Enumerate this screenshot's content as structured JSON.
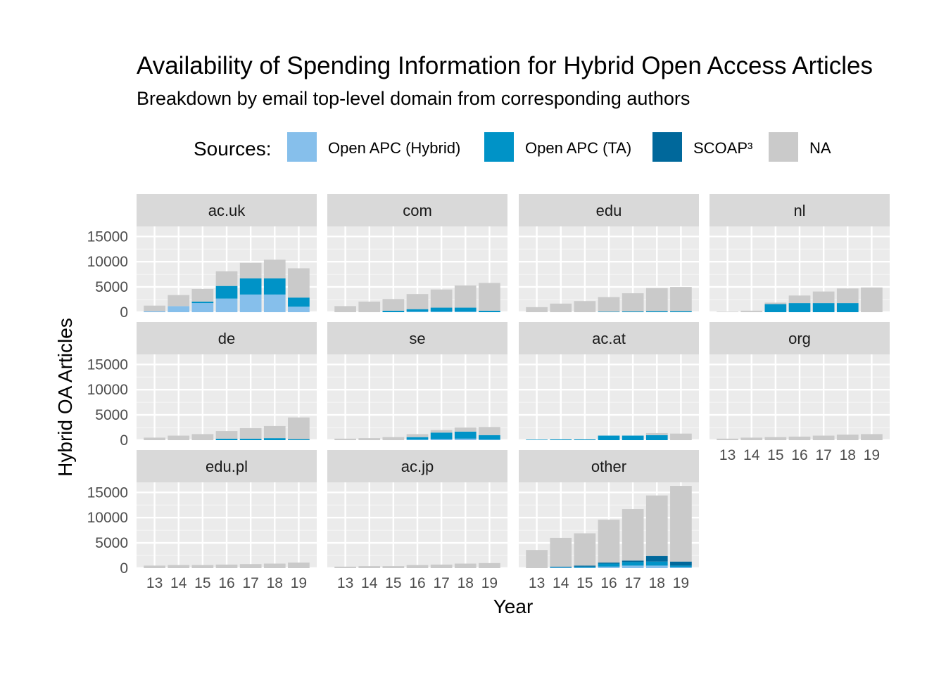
{
  "chart_data": {
    "type": "bar",
    "stacked": true,
    "title": "Availability of Spending Information for Hybrid Open Access Articles",
    "subtitle": "Breakdown by email top-level domain from corresponding authors",
    "xlabel": "Year",
    "ylabel": "Hybrid OA Articles",
    "ylim": [
      0,
      17000
    ],
    "yticks": [
      0,
      5000,
      10000,
      15000
    ],
    "x": [
      "13",
      "14",
      "15",
      "16",
      "17",
      "18",
      "19"
    ],
    "legend": {
      "title": "Sources:",
      "position": "top",
      "entries": [
        {
          "key": "hybrid",
          "label": "Open APC (Hybrid)",
          "color": "#86bfeb"
        },
        {
          "key": "ta",
          "label": "Open APC (TA)",
          "color": "#0093c7"
        },
        {
          "key": "scoap",
          "label": "SCOAP³",
          "color": "#00689b"
        },
        {
          "key": "na",
          "label": "NA",
          "color": "#cacaca"
        }
      ]
    },
    "panel_background": "#ebebeb",
    "strip_background": "#d9d9d9",
    "grid": true,
    "facets": [
      {
        "name": "ac.uk",
        "hybrid": [
          200,
          1200,
          1800,
          2700,
          3500,
          3500,
          1100
        ],
        "ta": [
          0,
          0,
          300,
          2500,
          3200,
          3200,
          1800
        ],
        "scoap": [
          0,
          0,
          0,
          0,
          0,
          0,
          0
        ],
        "na": [
          1100,
          2200,
          2500,
          2900,
          3100,
          3700,
          5800
        ]
      },
      {
        "name": "com",
        "hybrid": [
          0,
          0,
          0,
          100,
          100,
          100,
          0
        ],
        "ta": [
          0,
          0,
          300,
          500,
          800,
          800,
          300
        ],
        "scoap": [
          0,
          0,
          0,
          0,
          0,
          0,
          0
        ],
        "na": [
          1200,
          2100,
          2300,
          3000,
          3600,
          4400,
          5500
        ]
      },
      {
        "name": "edu",
        "hybrid": [
          0,
          0,
          0,
          0,
          0,
          0,
          0
        ],
        "ta": [
          0,
          0,
          0,
          100,
          150,
          200,
          200
        ],
        "scoap": [
          0,
          0,
          0,
          0,
          0,
          0,
          0
        ],
        "na": [
          1000,
          1700,
          2200,
          2900,
          3600,
          4600,
          4800
        ]
      },
      {
        "name": "nl",
        "hybrid": [
          0,
          0,
          0,
          0,
          0,
          0,
          0
        ],
        "ta": [
          0,
          0,
          1600,
          1800,
          1800,
          1800,
          0
        ],
        "scoap": [
          0,
          0,
          0,
          0,
          0,
          0,
          0
        ],
        "na": [
          100,
          300,
          300,
          1500,
          2300,
          2900,
          4900
        ]
      },
      {
        "name": "de",
        "hybrid": [
          0,
          0,
          0,
          0,
          0,
          0,
          0
        ],
        "ta": [
          0,
          0,
          0,
          300,
          300,
          400,
          200
        ],
        "scoap": [
          0,
          0,
          0,
          0,
          0,
          0,
          0
        ],
        "na": [
          500,
          900,
          1200,
          1500,
          2100,
          2400,
          4300
        ]
      },
      {
        "name": "se",
        "hybrid": [
          0,
          0,
          0,
          100,
          200,
          300,
          100
        ],
        "ta": [
          0,
          0,
          0,
          500,
          1300,
          1400,
          900
        ],
        "scoap": [
          0,
          0,
          0,
          0,
          0,
          0,
          0
        ],
        "na": [
          300,
          400,
          600,
          600,
          500,
          800,
          1600
        ]
      },
      {
        "name": "ac.at",
        "hybrid": [
          0,
          0,
          0,
          0,
          0,
          0,
          0
        ],
        "ta": [
          100,
          150,
          150,
          900,
          900,
          1000,
          0
        ],
        "scoap": [
          0,
          0,
          0,
          0,
          0,
          0,
          0
        ],
        "na": [
          0,
          0,
          0,
          0,
          0,
          400,
          1300
        ]
      },
      {
        "name": "org",
        "hybrid": [
          0,
          0,
          0,
          0,
          0,
          0,
          0
        ],
        "ta": [
          0,
          0,
          0,
          0,
          0,
          0,
          0
        ],
        "scoap": [
          0,
          0,
          0,
          0,
          0,
          0,
          0
        ],
        "na": [
          300,
          500,
          600,
          700,
          900,
          1100,
          1200
        ]
      },
      {
        "name": "edu.pl",
        "hybrid": [
          0,
          0,
          0,
          0,
          0,
          0,
          0
        ],
        "ta": [
          0,
          0,
          0,
          0,
          0,
          0,
          0
        ],
        "scoap": [
          0,
          0,
          0,
          0,
          0,
          0,
          0
        ],
        "na": [
          500,
          600,
          600,
          700,
          800,
          900,
          1100
        ]
      },
      {
        "name": "ac.jp",
        "hybrid": [
          0,
          0,
          0,
          0,
          0,
          0,
          0
        ],
        "ta": [
          0,
          0,
          0,
          0,
          0,
          0,
          0
        ],
        "scoap": [
          0,
          0,
          0,
          0,
          0,
          0,
          0
        ],
        "na": [
          300,
          400,
          400,
          600,
          700,
          900,
          1000
        ]
      },
      {
        "name": "other",
        "hybrid": [
          0,
          100,
          100,
          300,
          500,
          500,
          200
        ],
        "ta": [
          0,
          100,
          200,
          600,
          700,
          800,
          300
        ],
        "scoap": [
          0,
          100,
          200,
          200,
          300,
          1100,
          800
        ],
        "na": [
          3600,
          5700,
          6400,
          8500,
          10200,
          12000,
          15000
        ]
      }
    ]
  }
}
